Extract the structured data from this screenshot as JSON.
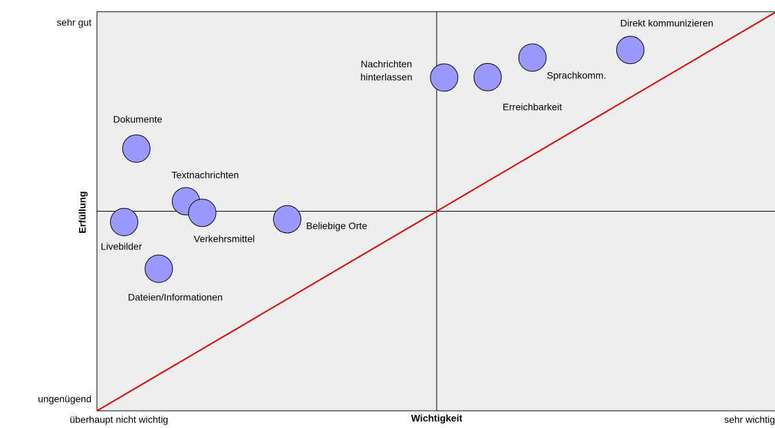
{
  "chart_data": {
    "type": "scatter",
    "xlabel": "Wichtigkeit",
    "ylabel": "Erfüllung",
    "xlim": [
      0,
      10
    ],
    "ylim": [
      0,
      10
    ],
    "xticks": [
      {
        "value": 0,
        "label": "überhaupt nicht wichtig"
      },
      {
        "value": 10,
        "label": "sehr wichtig"
      }
    ],
    "yticks": [
      {
        "value": 0,
        "label": "ungenügend"
      },
      {
        "value": 10,
        "label": "sehr gut"
      }
    ],
    "reference_line_color": "#e00000",
    "series": [
      {
        "color": "#9999ff",
        "labels": [
          "Direkt kommunizieren",
          "Sprachkomm.",
          "Erreichbarkeit",
          "Nachrichten\nhinterlassen",
          "Dokumente",
          "Textnachrichten",
          "Verkehrsmittel",
          "Beliebige Orte",
          "Livebilder",
          "Dateien/Informationen"
        ],
        "x": [
          7.85,
          6.41,
          5.75,
          5.11,
          0.58,
          1.31,
          1.55,
          2.8,
          0.4,
          0.91
        ],
        "values": [
          9.04,
          8.85,
          8.36,
          8.35,
          6.57,
          5.25,
          4.96,
          4.8,
          4.73,
          3.56
        ]
      }
    ]
  }
}
